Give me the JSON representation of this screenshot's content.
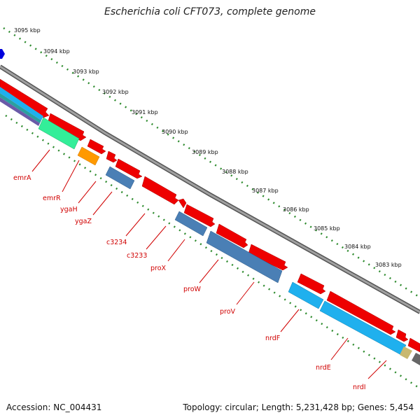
{
  "title": "Escherichia coli CFT073, complete genome",
  "accession": "Accession: NC_004431",
  "summary": "Topology: circular; Length: 5,231,428 bp; Genes: 5,454",
  "kbp_labels": [
    "3095 kbp",
    "3094 kbp",
    "3093 kbp",
    "3092 kbp",
    "3091 kbp",
    "3090 kbp",
    "3089 kbp",
    "3088 kbp",
    "3087 kbp",
    "3086 kbp",
    "3085 kbp",
    "3084 kbp",
    "3083 kbp"
  ],
  "genes": [
    "emrA",
    "emrR",
    "ygaH",
    "ygaZ",
    "c3234",
    "c3233",
    "proX",
    "proW",
    "proV",
    "nrdF",
    "nrdE",
    "nrdI"
  ],
  "colors": {
    "backbone": "#8a8a8a",
    "cds": "#ee0000",
    "gene_label": "#d00000",
    "tick": "#2e8b2e",
    "steel_blue": "#4a7fb5",
    "sky_blue": "#1fb0ee",
    "aquamarine": "#33ee99",
    "orange": "#ff9900",
    "khaki": "#c8b870",
    "dark_gray": "#666666",
    "blue": "#0000dd"
  }
}
